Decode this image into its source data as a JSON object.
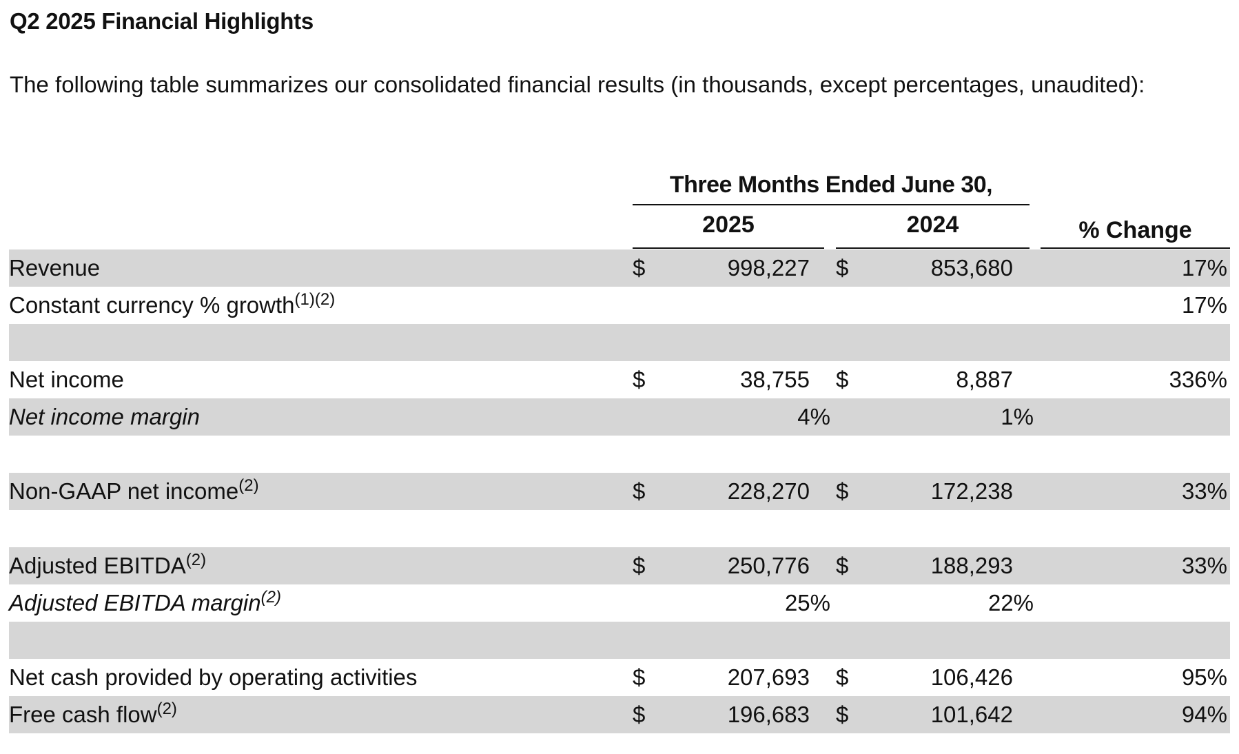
{
  "title": "Q2 2025 Financial Highlights",
  "intro": "The following table summarizes our consolidated financial results (in thousands, except percentages, unaudited):",
  "table": {
    "group_header": "Three Months Ended June 30,",
    "col_2025": "2025",
    "col_2024": "2024",
    "col_change": "% Change",
    "currency_symbol": "$",
    "rows": [
      {
        "label": "Revenue",
        "sup": "",
        "italic": false,
        "shade": true,
        "cur25": "$",
        "v2025": "998,227",
        "cur24": "$",
        "v2024": "853,680",
        "margin2025": "",
        "margin2024": "",
        "change": "17%"
      },
      {
        "label": "Constant currency % growth",
        "sup": "(1)(2)",
        "italic": false,
        "shade": false,
        "cur25": "",
        "v2025": "",
        "cur24": "",
        "v2024": "",
        "margin2025": "",
        "margin2024": "",
        "change": "17%"
      },
      {
        "label": "",
        "sup": "",
        "italic": false,
        "shade": true,
        "cur25": "",
        "v2025": "",
        "cur24": "",
        "v2024": "",
        "margin2025": "",
        "margin2024": "",
        "change": ""
      },
      {
        "label": "Net income",
        "sup": "",
        "italic": false,
        "shade": false,
        "cur25": "$",
        "v2025": "38,755",
        "cur24": "$",
        "v2024": "8,887",
        "margin2025": "",
        "margin2024": "",
        "change": "336%"
      },
      {
        "label": "Net income margin",
        "sup": "",
        "italic": true,
        "shade": true,
        "cur25": "",
        "v2025": "",
        "cur24": "",
        "v2024": "",
        "margin2025": "4%",
        "margin2024": "1%",
        "change": ""
      },
      {
        "label": "",
        "sup": "",
        "italic": false,
        "shade": false,
        "cur25": "",
        "v2025": "",
        "cur24": "",
        "v2024": "",
        "margin2025": "",
        "margin2024": "",
        "change": ""
      },
      {
        "label": "Non-GAAP net income",
        "sup": "(2)",
        "italic": false,
        "shade": true,
        "cur25": "$",
        "v2025": "228,270",
        "cur24": "$",
        "v2024": "172,238",
        "margin2025": "",
        "margin2024": "",
        "change": "33%"
      },
      {
        "label": "",
        "sup": "",
        "italic": false,
        "shade": false,
        "cur25": "",
        "v2025": "",
        "cur24": "",
        "v2024": "",
        "margin2025": "",
        "margin2024": "",
        "change": ""
      },
      {
        "label": "Adjusted EBITDA",
        "sup": "(2)",
        "italic": false,
        "shade": true,
        "cur25": "$",
        "v2025": "250,776",
        "cur24": "$",
        "v2024": "188,293",
        "margin2025": "",
        "margin2024": "",
        "change": "33%"
      },
      {
        "label": "Adjusted EBITDA margin",
        "sup": "(2)",
        "italic": true,
        "shade": false,
        "cur25": "",
        "v2025": "",
        "cur24": "",
        "v2024": "",
        "margin2025": "25%",
        "margin2024": "22%",
        "change": ""
      },
      {
        "label": "",
        "sup": "",
        "italic": false,
        "shade": true,
        "cur25": "",
        "v2025": "",
        "cur24": "",
        "v2024": "",
        "margin2025": "",
        "margin2024": "",
        "change": ""
      },
      {
        "label": "Net cash provided by operating activities",
        "sup": "",
        "italic": false,
        "shade": false,
        "cur25": "$",
        "v2025": "207,693",
        "cur24": "$",
        "v2024": "106,426",
        "margin2025": "",
        "margin2024": "",
        "change": "95%"
      },
      {
        "label": "Free cash flow",
        "sup": "(2)",
        "italic": false,
        "shade": true,
        "cur25": "$",
        "v2025": "196,683",
        "cur24": "$",
        "v2024": "101,642",
        "margin2025": "",
        "margin2024": "",
        "change": "94%"
      }
    ]
  }
}
